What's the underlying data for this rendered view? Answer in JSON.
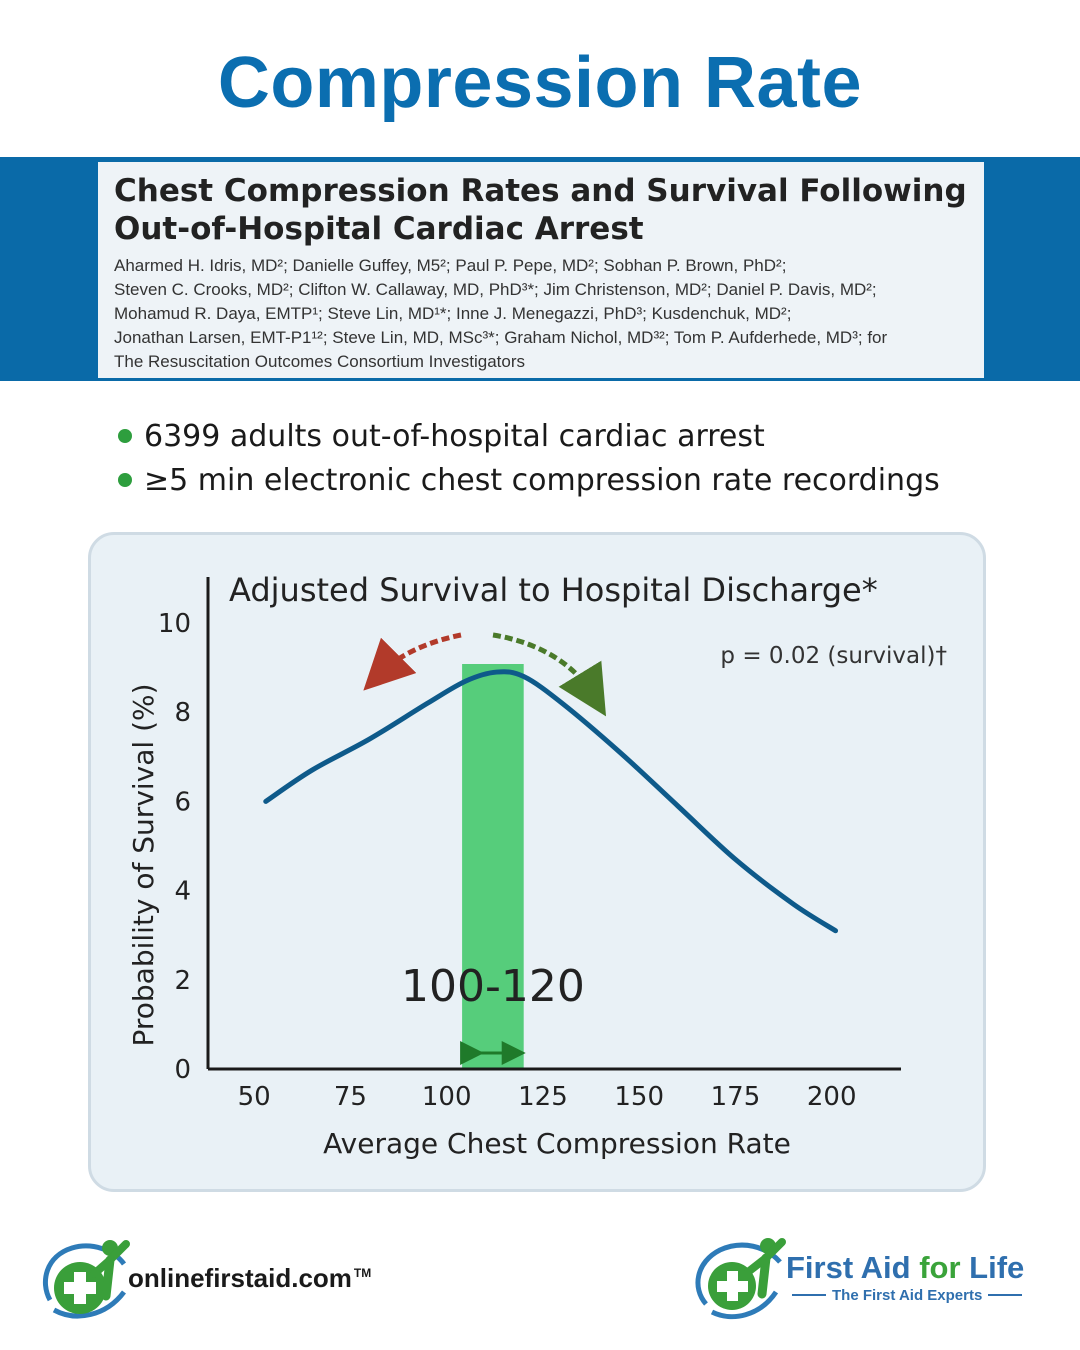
{
  "header": {
    "title": "Compression Rate"
  },
  "paper": {
    "title_line1": "Chest Compression Rates and Survival Following",
    "title_line2": "Out-of-Hospital Cardiac Arrest",
    "authors": [
      "Aharmed H. Idris, MD²; Danielle Guffey, M5²; Paul P. Pepe, MD²; Sobhan P. Brown, PhD²;",
      "Steven C. Crooks, MD²; Clifton W. Callaway, MD, PhD³*; Jim Christenson, MD²; Daniel P. Davis, MD²;",
      "Mohamud R. Daya, EMTP¹; Steve Lin, MD¹*; Inne J. Menegazzi, PhD³; Kusdenchuk, MD²;",
      "Jonathan Larsen, EMT-P1¹²; Steve Lin, MD, MSc³*; Graham Nichol, MD³²; Tom P. Aufderhede, MD³; for",
      "The Resuscitation Outcomes Consortium Investigators"
    ]
  },
  "bullets": [
    "6399 adults out-of-hospital cardiac arrest",
    "≥5 min electronic chest compression rate recordings"
  ],
  "chart_data": {
    "type": "line",
    "title": "Adjusted Survival to Hospital Discharge*",
    "annotation": "p = 0.02 (survival)†",
    "xlabel": "Average Chest Compression Rate",
    "ylabel": "Probability of Survival (%)",
    "xlim": [
      38,
      218
    ],
    "ylim": [
      0,
      10
    ],
    "x_ticks": [
      50,
      75,
      100,
      125,
      150,
      175,
      200
    ],
    "y_ticks": [
      0,
      2,
      4,
      6,
      8,
      10
    ],
    "grid": false,
    "series": [
      {
        "x": [
          53,
          65,
          80,
          95,
          105,
          113,
          120,
          130,
          145,
          160,
          175,
          190,
          201
        ],
        "y": [
          6.0,
          6.7,
          7.4,
          8.2,
          8.7,
          8.9,
          8.8,
          8.2,
          7.1,
          5.9,
          4.7,
          3.7,
          3.1
        ]
      }
    ],
    "highlight_band": {
      "x_start": 104,
      "x_end": 120,
      "label": "100-120",
      "color": "#3cc765"
    },
    "arrow_colors": {
      "left": "#b23a2a",
      "right": "#4a7a2a"
    },
    "line_color": "#0e5a8a"
  },
  "logos": {
    "left": {
      "name": "onlinefirstaid.com",
      "tm": "TM"
    },
    "right": {
      "name_part1": "First Aid ",
      "name_part2": "for",
      "name_part3": " Life",
      "tagline": "The First Aid Experts"
    }
  }
}
